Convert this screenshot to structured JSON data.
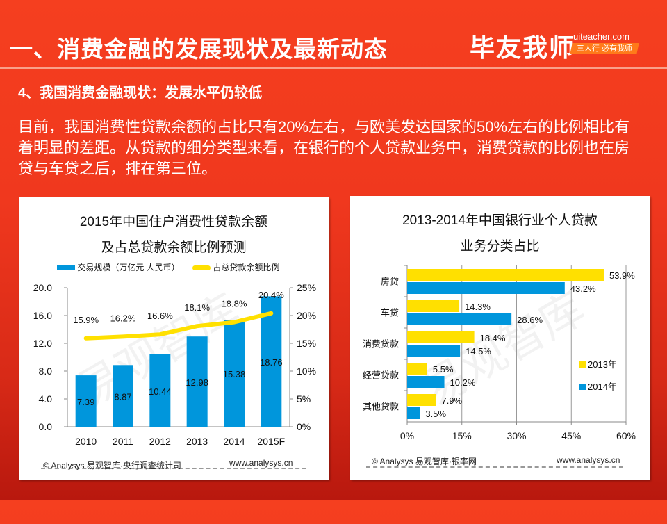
{
  "header": {
    "title": "一、消费金融的发展现状及最新动态",
    "brand_name": "毕友我师",
    "brand_url": "uiteacher.com",
    "brand_slogan": "三人行 必有我师"
  },
  "section": {
    "subheading": "4、我国消费金融现状：发展水平仍较低",
    "body": "目前，我国消费性贷款余额的占比只有20%左右，与欧美发达国家的50%左右的比例相比有着明显的差距。从贷款的细分类型来看，在银行的个人贷款业务中，消费贷款的比例也在房贷与车贷之后，排在第三位。"
  },
  "colors": {
    "blue": "#0096dc",
    "yellow": "#ffe000",
    "background": "#f0381e"
  },
  "chart_data": [
    {
      "type": "bar",
      "title_line1": "2015年中国住户消费性贷款余额",
      "title_line2": "及占总贷款余额比例预测",
      "categories": [
        "2010",
        "2011",
        "2012",
        "2013",
        "2014",
        "2015F"
      ],
      "series": [
        {
          "name": "交易规模（万亿元 人民币）",
          "type": "bar",
          "axis": "left",
          "values": [
            7.39,
            8.87,
            10.44,
            12.98,
            15.38,
            18.76
          ],
          "labels": [
            "7.39",
            "8.87",
            "10.44",
            "12.98",
            "15.38",
            "18.76"
          ]
        },
        {
          "name": "占总贷款余额比例",
          "type": "line",
          "axis": "right",
          "values": [
            15.9,
            16.2,
            16.6,
            18.1,
            18.8,
            20.4
          ],
          "labels": [
            "15.9%",
            "16.2%",
            "16.6%",
            "18.1%",
            "18.8%",
            "20.4%"
          ]
        }
      ],
      "ylim_left": [
        0,
        20
      ],
      "yticks_left": [
        "0.0",
        "4.0",
        "8.0",
        "12.0",
        "16.0",
        "20.0"
      ],
      "ylim_right": [
        0,
        25
      ],
      "yticks_right": [
        "0%",
        "5%",
        "10%",
        "15%",
        "20%",
        "25%"
      ],
      "legend_position": "top",
      "source": "© Analysys 易观智库·央行调查统计司",
      "url": "www.analysys.cn",
      "watermark": "易观智库"
    },
    {
      "type": "bar",
      "orientation": "horizontal",
      "title_line1": "2013-2014年中国银行业个人贷款",
      "title_line2": "业务分类占比",
      "categories": [
        "房贷",
        "车贷",
        "消费贷款",
        "经营贷款",
        "其他贷款"
      ],
      "series": [
        {
          "name": "2013年",
          "values": [
            53.9,
            14.3,
            18.4,
            5.5,
            7.9
          ],
          "labels": [
            "53.9%",
            "14.3%",
            "18.4%",
            "5.5%",
            "7.9%"
          ]
        },
        {
          "name": "2014年",
          "values": [
            43.2,
            28.6,
            14.5,
            10.2,
            3.5
          ],
          "labels": [
            "43.2%",
            "28.6%",
            "14.5%",
            "10.2%",
            "3.5%"
          ]
        }
      ],
      "xlim": [
        0,
        60
      ],
      "xticks": [
        "0%",
        "15%",
        "30%",
        "45%",
        "60%"
      ],
      "grid": true,
      "legend_position": "right",
      "source": "© Analysys 易观智库·银率网",
      "url": "www.analysys.cn",
      "watermark": "易观智库"
    }
  ]
}
